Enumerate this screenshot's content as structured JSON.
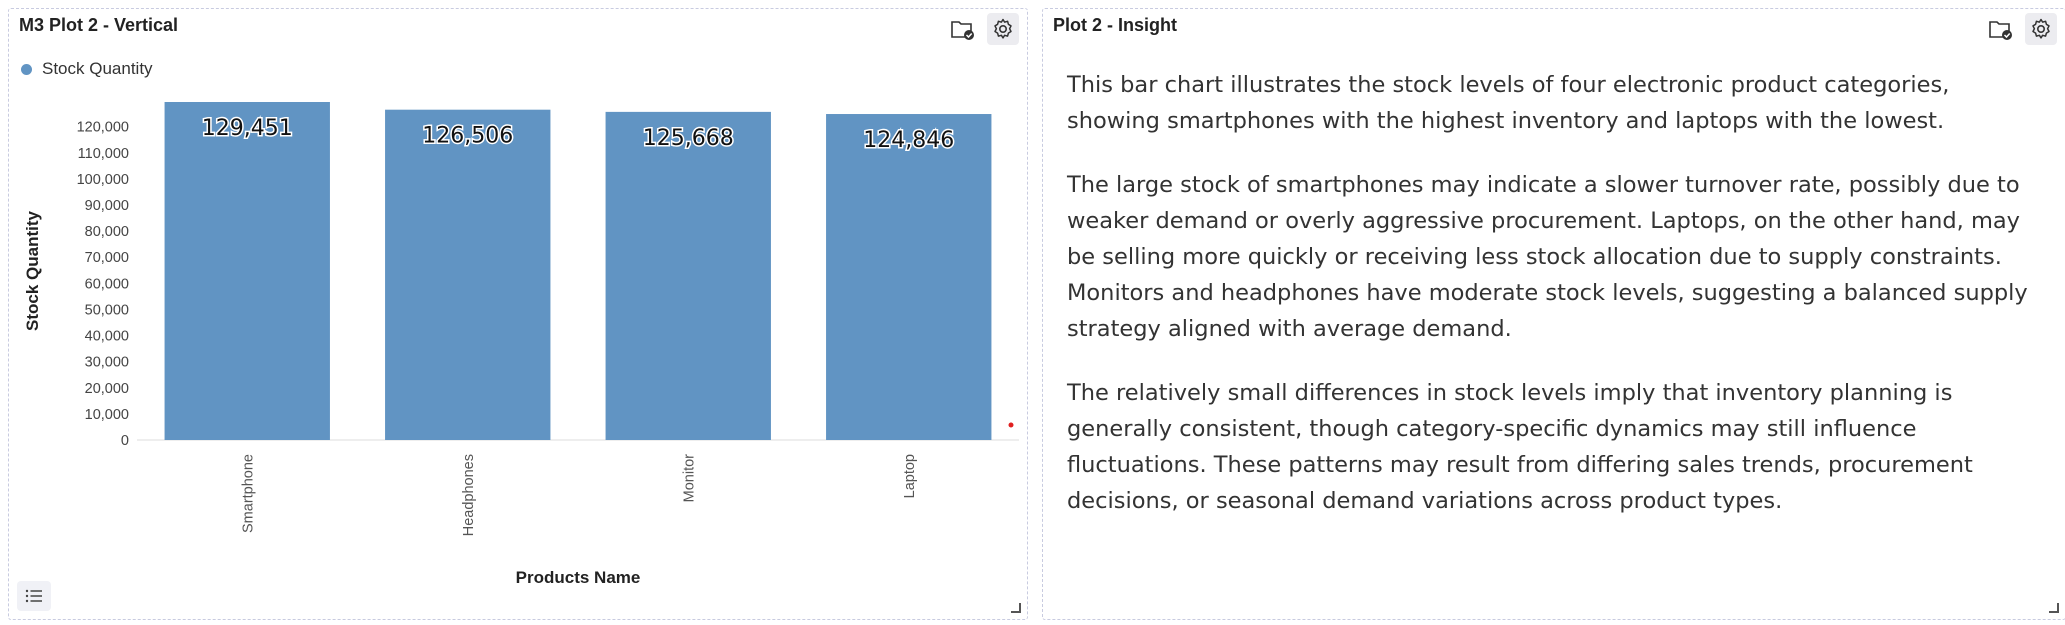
{
  "left_panel": {
    "title": "M3 Plot 2 - Vertical",
    "icons": [
      "folder-check-icon",
      "gear-icon"
    ]
  },
  "right_panel": {
    "title": "Plot 2 - Insight",
    "icons": [
      "folder-check-icon",
      "gear-icon"
    ],
    "paragraphs": [
      "This bar chart illustrates the stock levels of four electronic product categories, showing smartphones with the highest inventory and laptops with the lowest.",
      "The large stock of smartphones may indicate a slower turnover rate, possibly due to weaker demand or overly aggressive procurement. Laptops, on the other hand, may be selling more quickly or receiving less stock allocation due to supply constraints. Monitors and headphones have moderate stock levels, suggesting a balanced supply strategy aligned with average demand.",
      "The relatively small differences in stock levels imply that inventory planning is generally consistent, though category-specific dynamics may still influence fluctuations. These patterns may result from differing sales trends, procurement decisions, or seasonal demand variations across product types."
    ]
  },
  "colors": {
    "bar": "#6194c3",
    "accent_dot": "#e02020"
  },
  "chart_data": {
    "type": "bar",
    "categories": [
      "Smartphone",
      "Headphones",
      "Monitor",
      "Laptop"
    ],
    "series": [
      {
        "name": "Stock Quantity",
        "values": [
          129451,
          126506,
          125668,
          124846
        ]
      }
    ],
    "value_labels": [
      "129,451",
      "126,506",
      "125,668",
      "124,846"
    ],
    "xlabel": "Products Name",
    "ylabel": "Stock Quantity",
    "ylim": [
      0,
      129451
    ],
    "yticks": [
      0,
      10000,
      20000,
      30000,
      40000,
      50000,
      60000,
      70000,
      80000,
      90000,
      100000,
      110000,
      120000
    ],
    "ytick_labels": [
      "0",
      "10,000",
      "20,000",
      "30,000",
      "40,000",
      "50,000",
      "60,000",
      "70,000",
      "80,000",
      "90,000",
      "100,000",
      "110,000",
      "120,000"
    ],
    "grid": false,
    "legend": "top-left"
  }
}
